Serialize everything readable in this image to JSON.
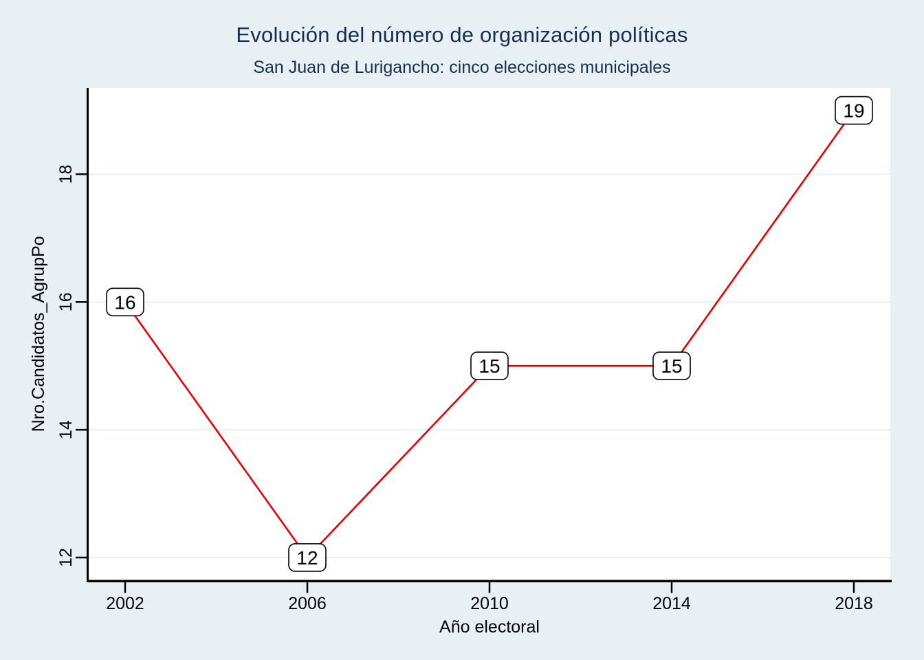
{
  "page": {
    "background": "#e9f0f4"
  },
  "chart_data": {
    "type": "line",
    "title": "Evolución del número de organización políticas",
    "subtitle": "San Juan de Lurigancho: cinco elecciones municipales",
    "xlabel": "Año electoral",
    "ylabel": "Nro.Candidatos_AgrupPo",
    "x": [
      2002,
      2006,
      2010,
      2014,
      2018
    ],
    "series": [
      {
        "name": "Nro.Candidatos_AgrupPo",
        "values": [
          16,
          12,
          15,
          15,
          19
        ]
      }
    ],
    "point_labels": [
      "16",
      "12",
      "15",
      "15",
      "19"
    ],
    "xticks": [
      "2002",
      "2006",
      "2010",
      "2014",
      "2018"
    ],
    "yticks": [
      "12",
      "14",
      "16",
      "18"
    ],
    "xlim": [
      2001.2,
      2018.8
    ],
    "ylim": [
      11.65,
      19.35
    ],
    "grid": true,
    "legend_position": "none",
    "line_color": "#e60000",
    "title_color": "#1a2c50",
    "axis_color": "#000000",
    "grid_color": "#e7eef4",
    "plot_background": "#ffffff",
    "label_box": {
      "fill": "#ffffff",
      "border": "#000000"
    }
  }
}
